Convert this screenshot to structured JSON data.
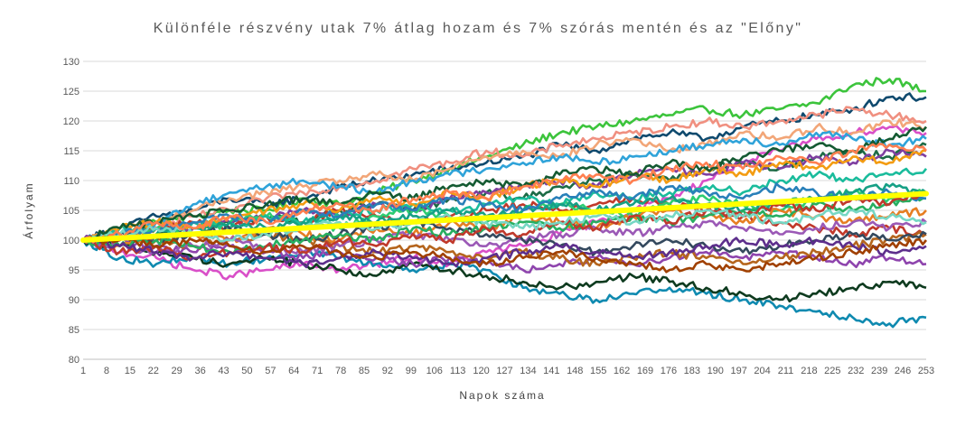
{
  "chart_data": {
    "type": "line",
    "title": "Különféle részvény utak 7% átlag hozam és 7% szórás mentén és az \"Előny\"",
    "xlabel": "Napok száma",
    "ylabel": "Árfolyam",
    "ylim": [
      80,
      130
    ],
    "yticks": [
      "80",
      "85",
      "90",
      "95",
      "100",
      "105",
      "110",
      "115",
      "120",
      "125",
      "130"
    ],
    "xlim": [
      1,
      253
    ],
    "xticks": [
      "1",
      "8",
      "15",
      "22",
      "29",
      "36",
      "43",
      "50",
      "57",
      "64",
      "71",
      "78",
      "85",
      "92",
      "99",
      "106",
      "113",
      "120",
      "127",
      "134",
      "141",
      "148",
      "155",
      "162",
      "169",
      "176",
      "183",
      "190",
      "197",
      "204",
      "211",
      "218",
      "225",
      "232",
      "239",
      "246",
      "253"
    ],
    "grid": true,
    "legend": "none",
    "highlight_series": {
      "color": "#ffff00",
      "x": [
        1,
        253
      ],
      "values": [
        100,
        107.8
      ]
    },
    "series": [
      {
        "color": "#3cc43c",
        "values": [
          100,
          101,
          103,
          104,
          105,
          105,
          107,
          106,
          108,
          110,
          112,
          114,
          116,
          118,
          119,
          120,
          121,
          122,
          121,
          122,
          123,
          126,
          127,
          125
        ]
      },
      {
        "color": "#0f4a6e",
        "values": [
          100,
          102,
          104,
          105,
          107,
          106,
          107,
          109,
          110,
          111,
          112,
          113,
          114,
          116,
          115,
          117,
          118,
          117,
          119,
          120,
          121,
          122,
          124,
          124
        ]
      },
      {
        "color": "#f09080",
        "values": [
          100,
          101,
          102,
          104,
          105,
          107,
          108,
          109,
          110,
          112,
          113,
          115,
          114,
          116,
          117,
          118,
          119,
          120,
          119,
          120,
          121,
          122,
          121,
          120
        ]
      },
      {
        "color": "#d94fc8",
        "values": [
          100,
          98,
          97,
          95,
          94,
          95,
          96,
          95,
          96,
          97,
          96,
          98,
          99,
          101,
          103,
          105,
          107,
          110,
          113,
          115,
          117,
          118,
          119,
          118
        ]
      },
      {
        "color": "#f2a678",
        "values": [
          100,
          102,
          103,
          105,
          107,
          108,
          109,
          110,
          111,
          110,
          112,
          114,
          115,
          114,
          116,
          117,
          115,
          116,
          118,
          117,
          119,
          118,
          120,
          119
        ]
      },
      {
        "color": "#2fa3d9",
        "values": [
          100,
          101,
          103,
          106,
          108,
          109,
          110,
          109,
          108,
          110,
          111,
          112,
          113,
          114,
          113,
          114,
          115,
          116,
          117,
          116,
          118,
          117,
          116,
          117
        ]
      },
      {
        "color": "#1d6b46",
        "values": [
          100,
          99,
          101,
          102,
          103,
          104,
          103,
          105,
          106,
          105,
          107,
          108,
          107,
          109,
          110,
          111,
          110,
          112,
          113,
          112,
          114,
          115,
          114,
          116
        ]
      },
      {
        "color": "#7f3fa0",
        "values": [
          100,
          101,
          100,
          102,
          103,
          104,
          105,
          104,
          106,
          105,
          107,
          108,
          109,
          110,
          109,
          111,
          112,
          111,
          113,
          112,
          114,
          113,
          115,
          114
        ]
      },
      {
        "color": "#0f8ab0",
        "values": [
          100,
          97,
          96,
          97,
          96,
          97,
          98,
          97,
          96,
          95,
          96,
          95,
          92,
          91,
          90,
          91,
          92,
          91,
          90,
          89,
          88,
          87,
          86,
          87
        ]
      },
      {
        "color": "#0e3b1f",
        "values": [
          100,
          99,
          98,
          97,
          96,
          97,
          96,
          95,
          94,
          96,
          95,
          94,
          93,
          92,
          93,
          94,
          93,
          92,
          91,
          90,
          91,
          92,
          93,
          92
        ]
      },
      {
        "color": "#c0392b",
        "values": [
          100,
          101,
          102,
          103,
          102,
          104,
          103,
          105,
          104,
          103,
          104,
          105,
          106,
          105,
          106,
          107,
          106,
          105,
          104,
          103,
          102,
          101,
          102,
          101
        ]
      },
      {
        "color": "#8e44ad",
        "values": [
          100,
          100,
          99,
          98,
          99,
          98,
          97,
          98,
          97,
          96,
          97,
          96,
          95,
          96,
          97,
          96,
          97,
          98,
          97,
          98,
          97,
          96,
          97,
          96
        ]
      },
      {
        "color": "#b5651d",
        "values": [
          100,
          101,
          100,
          99,
          100,
          101,
          100,
          99,
          98,
          99,
          98,
          97,
          98,
          97,
          96,
          97,
          98,
          97,
          96,
          97,
          98,
          99,
          100,
          101
        ]
      },
      {
        "color": "#2ecc71",
        "values": [
          100,
          101,
          102,
          101,
          103,
          104,
          103,
          102,
          104,
          105,
          104,
          103,
          105,
          106,
          105,
          104,
          106,
          107,
          106,
          105,
          107,
          108,
          107,
          108
        ]
      },
      {
        "color": "#e67e22",
        "values": [
          100,
          99,
          100,
          101,
          100,
          102,
          101,
          100,
          102,
          101,
          103,
          102,
          104,
          103,
          102,
          104,
          105,
          104,
          103,
          105,
          104,
          103,
          104,
          105
        ]
      },
      {
        "color": "#1abc9c",
        "values": [
          100,
          102,
          101,
          103,
          102,
          104,
          103,
          104,
          105,
          106,
          105,
          106,
          107,
          106,
          108,
          107,
          108,
          109,
          108,
          110,
          111,
          110,
          111,
          112
        ]
      },
      {
        "color": "#9b59b6",
        "values": [
          100,
          99,
          98,
          99,
          100,
          99,
          98,
          99,
          100,
          101,
          100,
          99,
          100,
          101,
          102,
          101,
          102,
          103,
          102,
          101,
          102,
          103,
          102,
          103
        ]
      },
      {
        "color": "#34495e",
        "values": [
          100,
          101,
          100,
          101,
          102,
          101,
          100,
          101,
          102,
          103,
          102,
          101,
          100,
          99,
          98,
          99,
          100,
          99,
          98,
          99,
          100,
          101,
          100,
          101
        ]
      },
      {
        "color": "#16a085",
        "values": [
          100,
          100,
          101,
          102,
          103,
          102,
          103,
          104,
          103,
          104,
          105,
          104,
          105,
          106,
          105,
          106,
          107,
          106,
          105,
          106,
          107,
          108,
          109,
          108
        ]
      },
      {
        "color": "#f39c12",
        "values": [
          100,
          102,
          103,
          102,
          104,
          105,
          106,
          105,
          107,
          106,
          108,
          107,
          109,
          110,
          109,
          111,
          110,
          112,
          111,
          113,
          112,
          114,
          113,
          115
        ]
      },
      {
        "color": "#27ae60",
        "values": [
          100,
          99,
          100,
          99,
          98,
          99,
          100,
          101,
          100,
          102,
          101,
          102,
          103,
          102,
          103,
          104,
          103,
          104,
          105,
          104,
          106,
          105,
          106,
          107
        ]
      },
      {
        "color": "#2980b9",
        "values": [
          100,
          101,
          102,
          103,
          104,
          103,
          105,
          104,
          106,
          105,
          107,
          106,
          105,
          107,
          108,
          107,
          109,
          108,
          107,
          109,
          108,
          107,
          108,
          107
        ]
      },
      {
        "color": "#c0392b",
        "values": [
          100,
          98,
          99,
          97,
          98,
          99,
          98,
          100,
          99,
          101,
          100,
          102,
          101,
          103,
          102,
          104,
          103,
          105,
          104,
          106,
          105,
          107,
          106,
          108
        ]
      },
      {
        "color": "#5d2e8c",
        "values": [
          100,
          99,
          98,
          97,
          98,
          97,
          96,
          97,
          98,
          97,
          96,
          97,
          98,
          99,
          98,
          97,
          98,
          99,
          100,
          99,
          100,
          99,
          98,
          99
        ]
      },
      {
        "color": "#76d7c4",
        "values": [
          100,
          101,
          102,
          101,
          100,
          101,
          102,
          103,
          102,
          103,
          104,
          103,
          102,
          103,
          104,
          103,
          104,
          105,
          104,
          103,
          104,
          105,
          104,
          103
        ]
      },
      {
        "color": "#145a32",
        "values": [
          100,
          102,
          103,
          104,
          105,
          106,
          107,
          106,
          108,
          107,
          109,
          110,
          109,
          111,
          112,
          111,
          113,
          112,
          114,
          115,
          116,
          115,
          117,
          119
        ]
      },
      {
        "color": "#a04000",
        "values": [
          100,
          100,
          99,
          100,
          99,
          98,
          99,
          98,
          97,
          98,
          97,
          96,
          97,
          98,
          97,
          96,
          95,
          96,
          95,
          96,
          97,
          98,
          99,
          100
        ]
      },
      {
        "color": "#ff7f50",
        "values": [
          100,
          101,
          103,
          102,
          104,
          103,
          105,
          106,
          105,
          107,
          108,
          107,
          109,
          110,
          111,
          110,
          112,
          113,
          112,
          114,
          113,
          115,
          116,
          115
        ]
      }
    ]
  }
}
